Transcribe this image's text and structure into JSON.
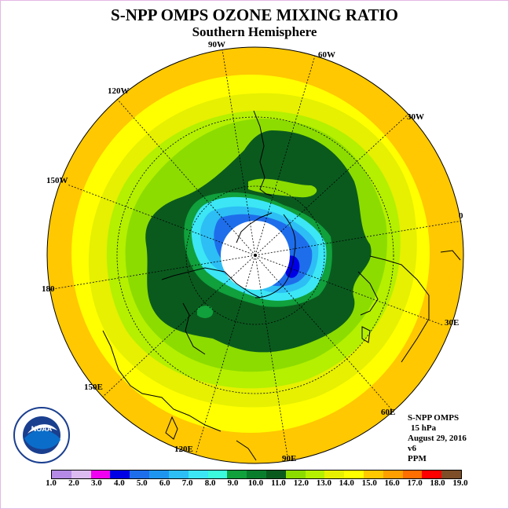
{
  "title": "S-NPP OMPS OZONE MIXING RATIO",
  "subtitle": "Southern Hemisphere",
  "longitude_labels": {
    "lon_0": "0",
    "lon_30w": "30W",
    "lon_60w": "60W",
    "lon_90w": "90W",
    "lon_120w": "120W",
    "lon_150w": "150W",
    "lon_180": "180",
    "lon_150e": "150E",
    "lon_120e": "120E",
    "lon_90e": "90E",
    "lon_60e": "60E",
    "lon_30e": "30E"
  },
  "info": {
    "instrument": "S-NPP OMPS",
    "pressure_level": "15 hPa",
    "date": "August 29, 2016",
    "version": "v6",
    "units": "PPM"
  },
  "logo": {
    "text": "NOAA",
    "ring_text": "NATIONAL OCEANIC AND ATMOSPHERIC ADMINISTRATION · U.S. DEPARTMENT OF COMMERCE"
  },
  "colorbar": {
    "colors": [
      "#b48ae6",
      "#dcbcf0",
      "#f000f0",
      "#0000e6",
      "#1e6eeb",
      "#1e96f0",
      "#2dbef5",
      "#3ce6f5",
      "#3cfadc",
      "#10a03c",
      "#0a7d2d",
      "#0a5a1e",
      "#8cdc00",
      "#b4f000",
      "#e6f000",
      "#ffff00",
      "#ffc800",
      "#ffa000",
      "#ff6e00",
      "#ff0000",
      "#7d4e28"
    ],
    "labels": [
      "1.0",
      "2.0",
      "3.0",
      "4.0",
      "5.0",
      "6.0",
      "7.0",
      "8.0",
      "9.0",
      "10.0",
      "11.0",
      "12.0",
      "13.0",
      "14.0",
      "15.0",
      "16.0",
      "17.0",
      "18.0",
      "19.0"
    ]
  },
  "colors": {
    "outer_band": "#ffc800",
    "band_yellow": "#ffff00",
    "band_lightyellow": "#e6f000",
    "band_lime": "#b4f000",
    "band_green": "#8cdc00",
    "band_darkgreen": "#0a5a1e",
    "band_midgreen": "#10a03c",
    "band_cyan": "#3ce6f5",
    "band_lightblue": "#2dbef5",
    "band_blue": "#1e6eeb",
    "band_deepblue": "#0000e6"
  }
}
